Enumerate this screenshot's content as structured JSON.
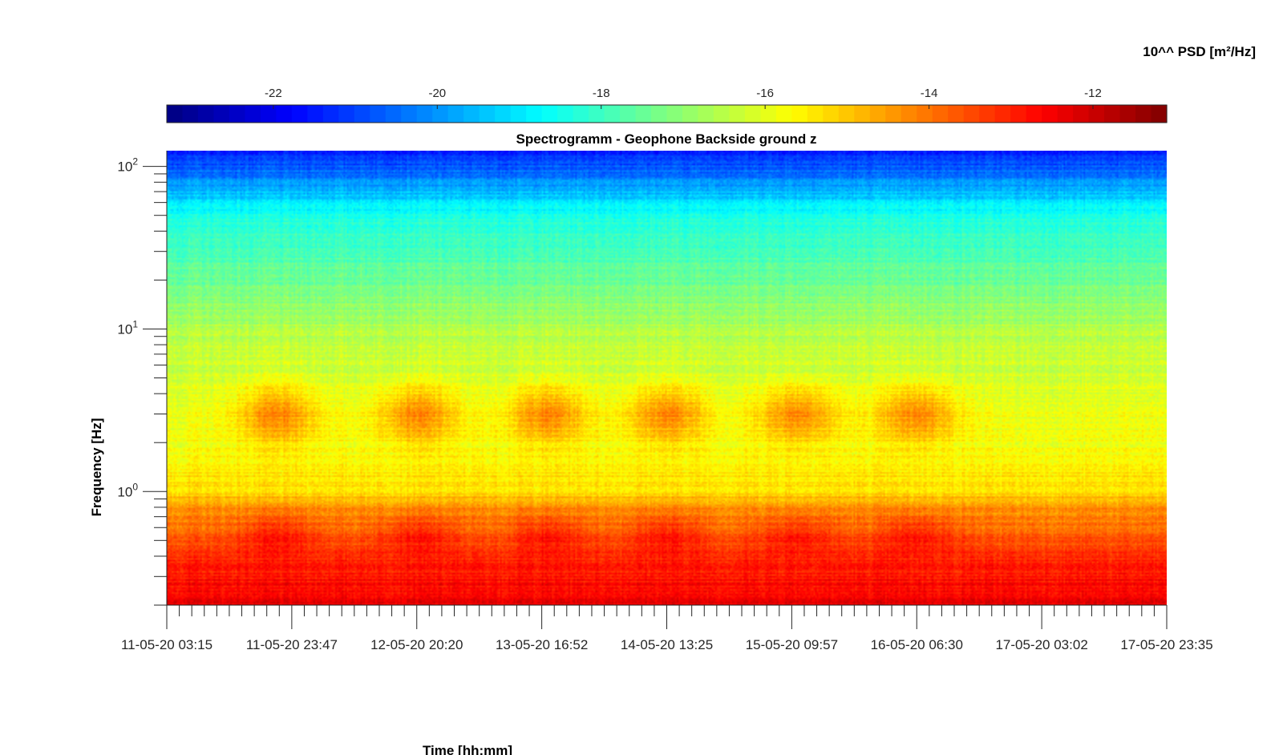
{
  "chart_data": {
    "type": "heatmap",
    "title": "Spectrogramm - Geophone Backside ground z",
    "xlabel": "Time [hh:mm]",
    "ylabel": "Frequency [Hz]",
    "yscale": "log",
    "ylim": [
      0.2,
      125
    ],
    "xlim": [
      "11-05-20 03:15",
      "17-05-20 23:35"
    ],
    "x_ticks": [
      "11-05-20 03:15",
      "11-05-20 23:47",
      "12-05-20 20:20",
      "13-05-20 16:52",
      "14-05-20 13:25",
      "15-05-20 09:57",
      "16-05-20 06:30",
      "17-05-20 03:02",
      "17-05-20 23:35"
    ],
    "y_ticks": [
      {
        "base": "10",
        "exp": "0",
        "value": 1
      },
      {
        "base": "10",
        "exp": "1",
        "value": 10
      },
      {
        "base": "10",
        "exp": "2",
        "value": 100
      }
    ],
    "colorbar": {
      "label": "10^^ PSD [m²/Hz]",
      "ticks": [
        "-22",
        "-20",
        "-18",
        "-16",
        "-14",
        "-12"
      ],
      "tick_values": [
        -22,
        -20,
        -18,
        -16,
        -14,
        -12
      ],
      "range": [
        -23.3,
        -11.1
      ],
      "colormap": "jet"
    },
    "z_profile": {
      "description_free": true,
      "freq_hz": [
        0.2,
        0.3,
        0.5,
        0.8,
        1.0,
        2.0,
        3.0,
        5.0,
        10.0,
        20.0,
        50.0,
        80.0,
        125.0
      ],
      "log10_psd_baseline": [
        -12.4,
        -12.8,
        -13.6,
        -14.4,
        -15.2,
        -15.8,
        -15.9,
        -16.2,
        -16.6,
        -17.4,
        -18.4,
        -20.0,
        -21.5
      ]
    },
    "day_activity_centers": [
      "11-05-20 14:00",
      "12-05-20 13:00",
      "13-05-20 12:30",
      "14-05-20 11:30",
      "15-05-20 10:00",
      "16-05-20 09:00"
    ]
  }
}
